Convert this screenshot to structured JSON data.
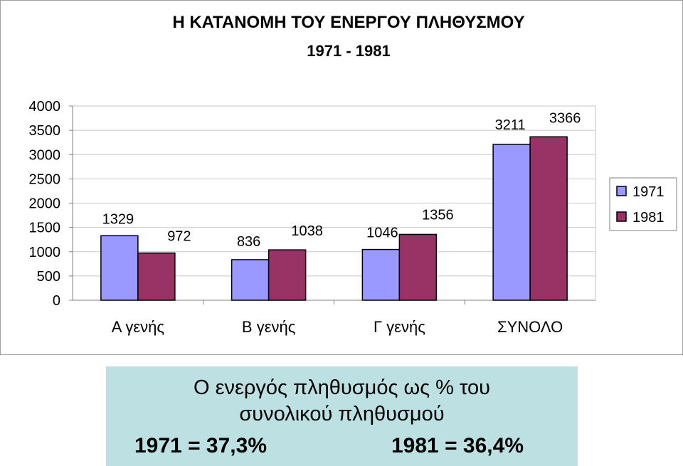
{
  "chart_data": {
    "type": "bar",
    "title": "Η ΚΑΤΑΝΟΜΗ ΤΟΥ ΕΝΕΡΓΟΥ ΠΛΗΘΥΣΜΟΥ",
    "subtitle": "1971 - 1981",
    "categories": [
      "Α γενής",
      "Β γενής",
      "Γ γενής",
      "ΣΥΝΟΛΟ"
    ],
    "series": [
      {
        "name": "1971",
        "values": [
          1329,
          836,
          1046,
          3211
        ],
        "color": "#9999ff"
      },
      {
        "name": "1981",
        "values": [
          972,
          1038,
          1356,
          3366
        ],
        "color": "#993366"
      }
    ],
    "y_ticks": [
      "4000",
      "3500",
      "3000",
      "2500",
      "2000",
      "1500",
      "1000",
      "500",
      "0"
    ],
    "ylim": [
      0,
      4000
    ],
    "grid": true,
    "legend_position": "right",
    "data_labels": true
  },
  "note": {
    "line1": "Ο ενεργός πληθυσμός ως % του",
    "line2": "συνολικού πληθυσμού",
    "stat_1971": "1971 = 37,3%",
    "stat_1981": "1981 = 36,4%",
    "background": "#bde1e3"
  }
}
